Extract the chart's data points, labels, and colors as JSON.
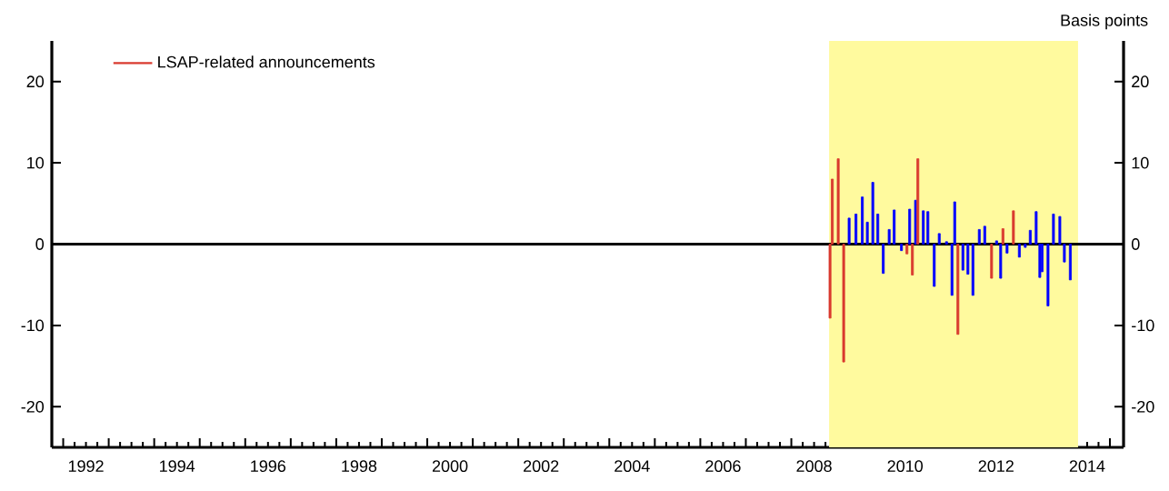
{
  "chart_data": {
    "type": "bar",
    "y2label": "Basis points",
    "series": [
      {
        "color": "#0000ff",
        "x": [
          2009.27,
          2009.42,
          2009.56,
          2009.67,
          2009.79,
          2009.9,
          2010.02,
          2010.15,
          2010.26,
          2010.42,
          2010.6,
          2010.73,
          2010.9,
          2011.0,
          2011.14,
          2011.25,
          2011.41,
          2011.53,
          2011.59,
          2011.77,
          2011.88,
          2011.99,
          2012.13,
          2012.25,
          2012.51,
          2012.6,
          2012.74,
          2013.01,
          2013.14,
          2013.25,
          2013.38,
          2013.46,
          2013.51,
          2013.64,
          2013.76,
          2013.9,
          2014.0,
          2014.13
        ],
        "values": [
          3.2,
          3.7,
          5.8,
          2.7,
          7.6,
          3.7,
          -3.6,
          1.8,
          4.2,
          -0.8,
          4.3,
          5.4,
          4.1,
          4.0,
          -5.2,
          1.3,
          0.3,
          -6.3,
          5.2,
          -3.2,
          -3.7,
          -6.3,
          1.8,
          2.2,
          0.4,
          -4.2,
          -1.1,
          -1.6,
          -0.4,
          1.7,
          4.0,
          -4.1,
          -3.4,
          -7.6,
          3.7,
          3.4,
          -2.2,
          -4.4
        ]
      },
      {
        "name": "LSAP-related announcements",
        "color": "#d93a2f",
        "x": [
          2008.85,
          2008.9,
          2009.03,
          2009.15,
          2010.54,
          2010.66,
          2010.78,
          2011.66,
          2012.4,
          2012.65,
          2012.88
        ],
        "values": [
          -9.1,
          8.0,
          10.5,
          -14.5,
          -1.2,
          -3.8,
          10.5,
          -11.1,
          -4.2,
          1.9,
          4.1
        ]
      }
    ],
    "xlim": [
      1991.75,
      2015.3
    ],
    "xticks": [
      {
        "value": 1992,
        "label": null
      },
      {
        "value": 1993,
        "label": null
      },
      {
        "value": 1994,
        "label": null
      },
      {
        "value": 1995,
        "label": null
      },
      {
        "value": 1996,
        "label": null
      },
      {
        "value": 1997,
        "label": null
      },
      {
        "value": 1998,
        "label": null
      },
      {
        "value": 1999,
        "label": null
      },
      {
        "value": 2000,
        "label": null
      },
      {
        "value": 2001,
        "label": null
      },
      {
        "value": 2002,
        "label": null
      },
      {
        "value": 2003,
        "label": null
      },
      {
        "value": 2004,
        "label": null
      },
      {
        "value": 2005,
        "label": null
      },
      {
        "value": 2006,
        "label": null
      },
      {
        "value": 2007,
        "label": null
      },
      {
        "value": 2008,
        "label": null
      },
      {
        "value": 2009,
        "label": null
      },
      {
        "value": 2010,
        "label": null
      },
      {
        "value": 2011,
        "label": null
      },
      {
        "value": 2012,
        "label": null
      },
      {
        "value": 2013,
        "label": null
      },
      {
        "value": 2014,
        "label": null
      },
      {
        "value": 2015,
        "label": null
      },
      {
        "value": 1992.5,
        "label": "1992"
      },
      {
        "value": 1994.5,
        "label": "1994"
      },
      {
        "value": 1996.5,
        "label": "1996"
      },
      {
        "value": 1998.5,
        "label": "1998"
      },
      {
        "value": 2000.5,
        "label": "2000"
      },
      {
        "value": 2002.5,
        "label": "2002"
      },
      {
        "value": 2004.5,
        "label": "2004"
      },
      {
        "value": 2006.5,
        "label": "2006"
      },
      {
        "value": 2008.5,
        "label": "2008"
      },
      {
        "value": 2010.5,
        "label": "2010"
      },
      {
        "value": 2012.5,
        "label": "2012"
      },
      {
        "value": 2014.5,
        "label": "2014"
      }
    ],
    "ylim": [
      -25,
      25
    ],
    "yticks": [
      -20,
      -10,
      0,
      10,
      20
    ],
    "y2lim": [
      -25,
      25
    ],
    "y2ticks": [
      -20,
      -10,
      0,
      10,
      20
    ],
    "bands": [
      {
        "axis": "x",
        "from": 2008.83,
        "to": 2014.3,
        "color": "#fffa9e"
      }
    ],
    "ref_lines": [
      {
        "axis": "y",
        "value": 0,
        "color": "#000000"
      }
    ],
    "legend": "top left",
    "grid": false
  }
}
